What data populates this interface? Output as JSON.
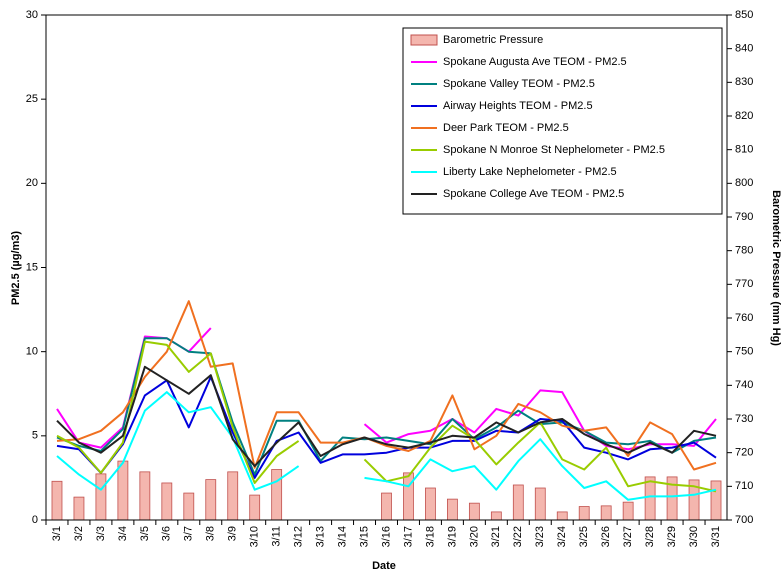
{
  "chart_data": {
    "type": "line",
    "x_label": "Date",
    "y_label": "PM2.5 (µg/m3)",
    "y2_label": "Barometric Pressure (mm Hg)",
    "categories": [
      "3/1",
      "3/2",
      "3/3",
      "3/4",
      "3/5",
      "3/6",
      "3/7",
      "3/8",
      "3/9",
      "3/10",
      "3/11",
      "3/12",
      "3/13",
      "3/14",
      "3/15",
      "3/16",
      "3/17",
      "3/18",
      "3/19",
      "3/20",
      "3/21",
      "3/22",
      "3/23",
      "3/24",
      "3/25",
      "3/26",
      "3/27",
      "3/28",
      "3/29",
      "3/30",
      "3/31"
    ],
    "ylim": [
      0,
      30
    ],
    "yticks": [
      0,
      5,
      10,
      15,
      20,
      25,
      30
    ],
    "y2lim": [
      700,
      850
    ],
    "y2ticks": [
      700,
      710,
      720,
      730,
      740,
      750,
      760,
      770,
      780,
      790,
      800,
      810,
      820,
      830,
      840,
      850
    ],
    "legend": "upper right",
    "series": [
      {
        "name": "Barometric Pressure",
        "type": "bar",
        "axis": "y2",
        "color": "#f4b6ae",
        "values": [
          711.5,
          706.8,
          713.7,
          717.5,
          714.3,
          711,
          708,
          712,
          714.3,
          707.4,
          715,
          null,
          null,
          null,
          null,
          708,
          714,
          709.5,
          706.2,
          705,
          702.4,
          710.4,
          709.5,
          702.4,
          704,
          704.2,
          705.3,
          712.8,
          712.8,
          711.9,
          711.6
        ]
      },
      {
        "name": "Spokane Augusta Ave TEOM - PM2.5",
        "type": "line",
        "color": "#ff00ff",
        "values": [
          6.6,
          4.6,
          4.3,
          5.5,
          10.9,
          10.8,
          10.0,
          11.4,
          null,
          null,
          null,
          null,
          null,
          null,
          5.7,
          4.6,
          5.1,
          5.3,
          6.0,
          5.2,
          6.6,
          6.2,
          7.7,
          7.6,
          5.3,
          4.4,
          4.2,
          4.5,
          4.5,
          4.4,
          6.0
        ]
      },
      {
        "name": "Spokane Valley TEOM - PM2.5",
        "type": "line",
        "color": "#008080",
        "values": [
          4.9,
          4.4,
          4.1,
          5.4,
          10.8,
          10.8,
          10.0,
          9.9,
          5.8,
          2.7,
          5.9,
          5.9,
          3.5,
          4.9,
          4.8,
          4.9,
          4.7,
          4.5,
          6.0,
          4.8,
          5.5,
          6.5,
          5.7,
          5.8,
          5.3,
          4.6,
          4.5,
          4.7,
          4.0,
          4.7,
          4.9
        ]
      },
      {
        "name": "Airway Heights TEOM - PM2.5",
        "type": "line",
        "color": "#0000dd",
        "values": [
          4.4,
          4.2,
          2.8,
          4.5,
          7.4,
          8.3,
          5.5,
          8.5,
          5.2,
          2.5,
          4.7,
          5.2,
          3.4,
          3.9,
          3.9,
          4.0,
          4.3,
          4.3,
          4.7,
          4.7,
          5.3,
          5.2,
          6.0,
          5.9,
          4.3,
          4.0,
          3.6,
          4.2,
          4.3,
          4.6,
          3.7
        ]
      },
      {
        "name": "Deer Park TEOM - PM2.5",
        "type": "line",
        "color": "#f07020",
        "values": [
          4.7,
          4.8,
          5.3,
          6.4,
          8.5,
          10.0,
          13.0,
          9.1,
          9.3,
          3.1,
          6.4,
          6.4,
          4.6,
          4.6,
          4.9,
          4.4,
          4.1,
          4.7,
          7.4,
          4.2,
          5.0,
          6.9,
          6.4,
          5.6,
          5.3,
          5.5,
          3.8,
          5.8,
          5.1,
          3.0,
          3.4
        ]
      },
      {
        "name": "Spokane N Monroe St Nephelometer - PM2.5",
        "type": "line",
        "color": "#99cc00",
        "values": [
          5.0,
          4.3,
          2.8,
          4.6,
          10.6,
          10.4,
          8.8,
          9.9,
          5.5,
          2.2,
          3.8,
          4.7,
          null,
          null,
          3.6,
          2.3,
          2.6,
          4.3,
          5.6,
          4.8,
          3.3,
          4.6,
          5.8,
          3.6,
          3.0,
          4.3,
          2.0,
          2.3,
          2.1,
          2.0,
          1.7
        ]
      },
      {
        "name": "Liberty Lake Nephelometer - PM2.5",
        "type": "line",
        "color": "#00ffff",
        "values": [
          3.8,
          2.7,
          1.8,
          3.4,
          6.5,
          7.6,
          6.4,
          6.7,
          4.9,
          1.8,
          2.3,
          3.2,
          null,
          null,
          2.5,
          2.3,
          2.0,
          3.6,
          2.9,
          3.2,
          1.8,
          3.5,
          4.8,
          3.2,
          1.9,
          2.3,
          1.2,
          1.4,
          1.4,
          1.5,
          1.8
        ]
      },
      {
        "name": "Spokane College Ave TEOM - PM2.5",
        "type": "line",
        "color": "#222222",
        "values": [
          5.9,
          4.6,
          4.0,
          5.0,
          9.1,
          8.3,
          7.5,
          8.6,
          4.8,
          3.2,
          4.6,
          5.8,
          3.8,
          4.5,
          4.9,
          4.5,
          4.3,
          4.6,
          5.0,
          4.9,
          5.8,
          5.2,
          5.8,
          6.0,
          5.1,
          4.5,
          4.0,
          4.6,
          4.0,
          5.3,
          5.0
        ]
      }
    ]
  }
}
